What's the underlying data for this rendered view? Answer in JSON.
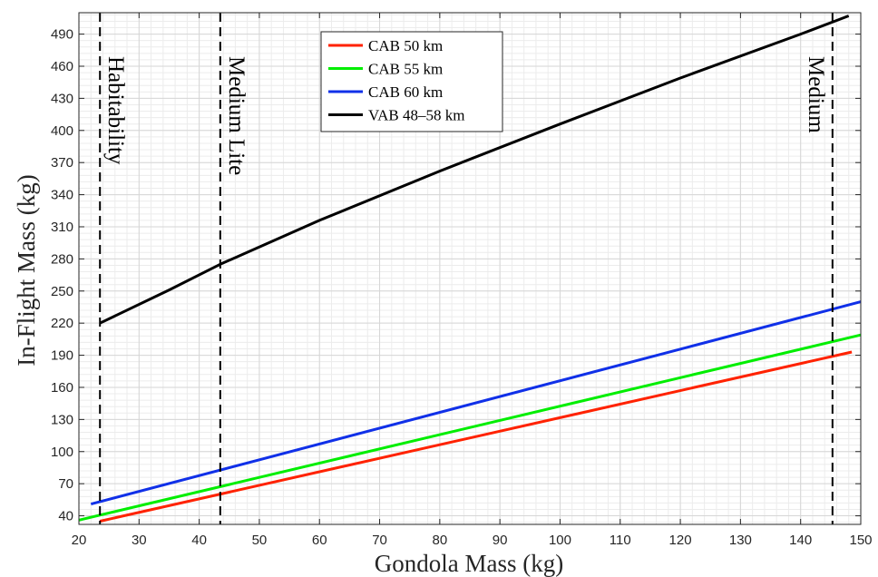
{
  "chart_data": {
    "type": "line",
    "title": "",
    "xlabel": "Gondola Mass (kg)",
    "ylabel": "In-Flight Mass (kg)",
    "xlim": [
      20,
      150
    ],
    "ylim": [
      32,
      510
    ],
    "xticks": [
      20,
      30,
      40,
      50,
      60,
      70,
      80,
      90,
      100,
      110,
      120,
      130,
      140,
      150
    ],
    "yticks": [
      40,
      70,
      100,
      130,
      160,
      190,
      220,
      250,
      280,
      310,
      340,
      370,
      400,
      430,
      460,
      490
    ],
    "grid": true,
    "minor_grid": true,
    "legend_position": "top-center",
    "series": [
      {
        "name": "CAB 50 km",
        "color": "#ff2200",
        "x": [
          23.5,
          148.5
        ],
        "y": [
          35,
          193
        ]
      },
      {
        "name": "CAB 55 km",
        "color": "#00ee00",
        "x": [
          20,
          150
        ],
        "y": [
          36,
          209
        ]
      },
      {
        "name": "CAB 60 km",
        "color": "#1030e8",
        "x": [
          22,
          150
        ],
        "y": [
          51,
          240
        ]
      },
      {
        "name": "VAB 48–58 km",
        "color": "#000000",
        "x": [
          23.5,
          35,
          43.5,
          60,
          80,
          100,
          120,
          140,
          148
        ],
        "y": [
          220,
          251,
          275,
          316,
          362,
          406,
          449,
          490,
          507
        ]
      }
    ],
    "vlines": [
      {
        "x": 23.5,
        "label": "Habitability",
        "label_side": "right"
      },
      {
        "x": 43.5,
        "label": "Medium Lite",
        "label_side": "right"
      },
      {
        "x": 145.3,
        "label": "Medium",
        "label_side": "left"
      }
    ]
  }
}
